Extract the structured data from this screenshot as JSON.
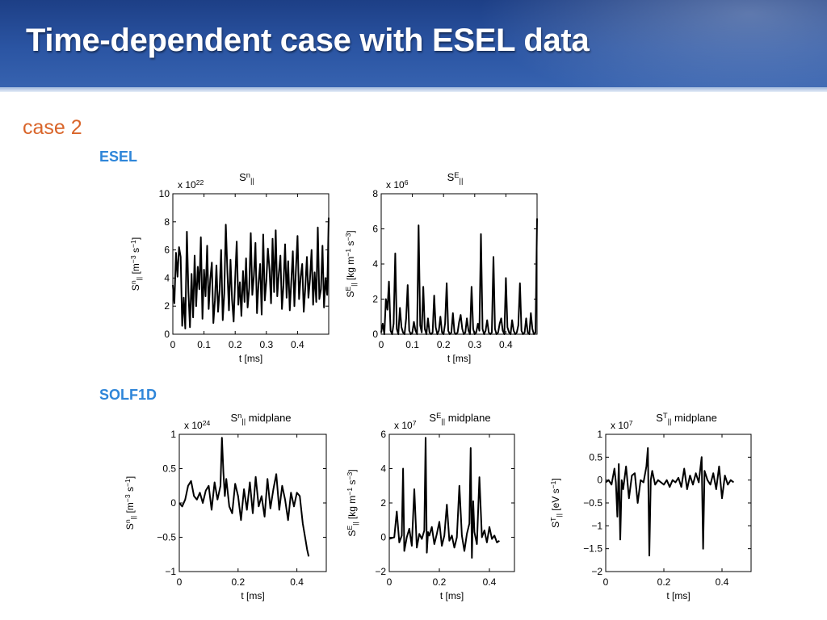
{
  "slide": {
    "title": "Time-dependent case with ESEL data",
    "case_label": "case 2",
    "section_esel": "ESEL",
    "section_solf1d": "SOLF1D"
  },
  "chart_data": [
    {
      "type": "line",
      "group": "ESEL",
      "title_main": "S",
      "title_sup": "n",
      "title_sub": "||",
      "title_suffix": "",
      "exponent_base": "x 10",
      "exponent_power": "22",
      "ylabel_main": "S",
      "ylabel_sup": "n",
      "ylabel_sub": "||",
      "ylabel_units": "[m",
      "ylabel_parts": [
        [
          "[m",
          ""
        ],
        [
          "−3",
          "sup"
        ],
        [
          " s",
          ""
        ],
        [
          "−1",
          "sup"
        ],
        [
          "]",
          ""
        ]
      ],
      "xlabel": "t [ms]",
      "xlim": [
        0,
        0.5
      ],
      "ylim": [
        0,
        10
      ],
      "xticks": [
        0,
        0.1,
        0.2,
        0.3,
        0.4
      ],
      "xtick_labels": [
        "0",
        "0.1",
        "0.2",
        "0.3",
        "0.4"
      ],
      "yticks": [
        0,
        2,
        4,
        6,
        8,
        10
      ],
      "ytick_labels": [
        "0",
        "2",
        "4",
        "6",
        "8",
        "10"
      ],
      "x": [
        0.0,
        0.005,
        0.01,
        0.015,
        0.02,
        0.025,
        0.03,
        0.035,
        0.04,
        0.045,
        0.05,
        0.055,
        0.06,
        0.065,
        0.07,
        0.075,
        0.08,
        0.085,
        0.09,
        0.095,
        0.1,
        0.105,
        0.11,
        0.115,
        0.12,
        0.125,
        0.13,
        0.135,
        0.14,
        0.145,
        0.15,
        0.155,
        0.16,
        0.165,
        0.17,
        0.175,
        0.18,
        0.185,
        0.19,
        0.195,
        0.2,
        0.205,
        0.21,
        0.215,
        0.22,
        0.225,
        0.23,
        0.235,
        0.24,
        0.245,
        0.25,
        0.255,
        0.26,
        0.265,
        0.27,
        0.275,
        0.28,
        0.285,
        0.29,
        0.295,
        0.3,
        0.305,
        0.31,
        0.315,
        0.32,
        0.325,
        0.33,
        0.335,
        0.34,
        0.345,
        0.35,
        0.355,
        0.36,
        0.365,
        0.37,
        0.375,
        0.38,
        0.385,
        0.39,
        0.395,
        0.4,
        0.405,
        0.41,
        0.415,
        0.42,
        0.425,
        0.43,
        0.435,
        0.44,
        0.445,
        0.45,
        0.455,
        0.46,
        0.465,
        0.47,
        0.475,
        0.48,
        0.485,
        0.49,
        0.495,
        0.5
      ],
      "y": [
        3.5,
        2.2,
        5.8,
        4.1,
        6.2,
        5.5,
        0.6,
        2.6,
        0.4,
        7.3,
        3.0,
        0.5,
        4.3,
        1.2,
        5.6,
        2.0,
        4.8,
        3.2,
        6.9,
        1.1,
        4.6,
        2.7,
        6.3,
        1.8,
        3.9,
        5.1,
        0.8,
        2.4,
        4.9,
        1.6,
        3.1,
        6.0,
        1.0,
        2.9,
        7.8,
        4.4,
        1.7,
        5.3,
        2.5,
        0.9,
        4.0,
        6.6,
        2.1,
        3.7,
        1.3,
        4.5,
        2.3,
        5.4,
        1.9,
        3.3,
        7.2,
        2.8,
        4.2,
        6.5,
        1.5,
        3.6,
        5.0,
        1.4,
        7.1,
        2.4,
        3.8,
        6.1,
        4.6,
        2.2,
        6.8,
        3.0,
        7.4,
        2.7,
        4.3,
        5.6,
        1.8,
        3.5,
        6.4,
        2.6,
        5.2,
        1.7,
        3.8,
        5.9,
        2.0,
        4.7,
        7.0,
        2.5,
        4.1,
        5.0,
        1.6,
        3.3,
        5.5,
        2.6,
        3.9,
        6.0,
        2.1,
        4.4,
        2.3,
        7.6,
        2.5,
        3.2,
        6.3,
        1.9,
        4.0,
        2.8,
        8.3
      ]
    },
    {
      "type": "line",
      "group": "ESEL",
      "title_main": "S",
      "title_sup": "E",
      "title_sub": "||",
      "title_suffix": "",
      "exponent_base": "x 10",
      "exponent_power": "6",
      "ylabel_main": "S",
      "ylabel_sup": "E",
      "ylabel_sub": "||",
      "ylabel_parts": [
        [
          "[kg m",
          ""
        ],
        [
          "−1",
          "sup"
        ],
        [
          " s",
          ""
        ],
        [
          "−3",
          "sup"
        ],
        [
          "]",
          ""
        ]
      ],
      "xlabel": "t [ms]",
      "xlim": [
        0,
        0.5
      ],
      "ylim": [
        0,
        8
      ],
      "xticks": [
        0,
        0.1,
        0.2,
        0.3,
        0.4
      ],
      "xtick_labels": [
        "0",
        "0.1",
        "0.2",
        "0.3",
        "0.4"
      ],
      "yticks": [
        0,
        2,
        4,
        6,
        8
      ],
      "ytick_labels": [
        "0",
        "2",
        "4",
        "6",
        "8"
      ],
      "x": [
        0.0,
        0.005,
        0.01,
        0.015,
        0.02,
        0.025,
        0.03,
        0.035,
        0.04,
        0.045,
        0.05,
        0.055,
        0.06,
        0.065,
        0.07,
        0.075,
        0.08,
        0.085,
        0.09,
        0.095,
        0.1,
        0.105,
        0.11,
        0.115,
        0.12,
        0.125,
        0.13,
        0.135,
        0.14,
        0.145,
        0.15,
        0.155,
        0.16,
        0.165,
        0.17,
        0.175,
        0.18,
        0.185,
        0.19,
        0.195,
        0.2,
        0.205,
        0.21,
        0.215,
        0.22,
        0.225,
        0.23,
        0.235,
        0.24,
        0.245,
        0.25,
        0.255,
        0.26,
        0.265,
        0.27,
        0.275,
        0.28,
        0.285,
        0.29,
        0.295,
        0.3,
        0.305,
        0.31,
        0.315,
        0.32,
        0.325,
        0.33,
        0.335,
        0.34,
        0.345,
        0.35,
        0.355,
        0.36,
        0.365,
        0.37,
        0.375,
        0.38,
        0.385,
        0.39,
        0.395,
        0.4,
        0.405,
        0.41,
        0.415,
        0.42,
        0.425,
        0.43,
        0.435,
        0.44,
        0.445,
        0.45,
        0.455,
        0.46,
        0.465,
        0.47,
        0.475,
        0.48,
        0.485,
        0.49,
        0.495,
        0.5
      ],
      "y": [
        0.1,
        0.6,
        0.0,
        2.0,
        1.4,
        3.0,
        0.2,
        0.0,
        0.6,
        4.6,
        0.3,
        0.0,
        1.5,
        0.4,
        0.1,
        0.0,
        0.9,
        2.8,
        0.2,
        0.0,
        0.1,
        0.7,
        0.2,
        0.0,
        6.2,
        0.5,
        0.1,
        2.7,
        0.3,
        0.0,
        0.9,
        0.1,
        0.0,
        0.1,
        2.2,
        0.4,
        0.0,
        0.2,
        1.0,
        0.1,
        0.0,
        0.6,
        2.9,
        0.2,
        0.0,
        0.1,
        1.2,
        0.1,
        0.0,
        0.1,
        0.7,
        1.1,
        0.3,
        0.0,
        0.1,
        0.9,
        0.2,
        0.0,
        2.7,
        0.3,
        0.0,
        0.1,
        0.6,
        0.2,
        5.7,
        0.3,
        0.0,
        0.2,
        0.8,
        0.1,
        0.0,
        0.1,
        4.4,
        0.3,
        0.0,
        0.1,
        0.6,
        0.9,
        0.2,
        0.0,
        3.2,
        0.4,
        0.1,
        0.0,
        0.8,
        0.2,
        0.0,
        0.1,
        0.5,
        2.9,
        0.2,
        0.0,
        0.1,
        0.9,
        0.1,
        0.0,
        1.2,
        0.3,
        0.0,
        0.1,
        6.6
      ]
    },
    {
      "type": "line",
      "group": "SOLF1D",
      "title_main": "S",
      "title_sup": "n",
      "title_sub": "||",
      "title_suffix": " midplane",
      "exponent_base": "x 10",
      "exponent_power": "24",
      "ylabel_main": "S",
      "ylabel_sup": "n",
      "ylabel_sub": "||",
      "ylabel_parts": [
        [
          "[m",
          ""
        ],
        [
          "−3",
          "sup"
        ],
        [
          " s",
          ""
        ],
        [
          "−1",
          "sup"
        ],
        [
          "]",
          ""
        ]
      ],
      "xlabel": "t [ms]",
      "xlim": [
        0,
        0.5
      ],
      "ylim": [
        -1,
        1
      ],
      "xticks": [
        0,
        0.2,
        0.4
      ],
      "xtick_labels": [
        "0",
        "0.2",
        "0.4"
      ],
      "yticks": [
        -1,
        -0.5,
        0,
        0.5,
        1
      ],
      "ytick_labels": [
        "−1",
        "−0.5",
        "0",
        "0.5",
        "1"
      ],
      "x": [
        0.0,
        0.01,
        0.02,
        0.03,
        0.04,
        0.05,
        0.06,
        0.07,
        0.08,
        0.09,
        0.1,
        0.11,
        0.12,
        0.13,
        0.14,
        0.145,
        0.15,
        0.155,
        0.16,
        0.17,
        0.18,
        0.19,
        0.2,
        0.21,
        0.22,
        0.23,
        0.24,
        0.25,
        0.26,
        0.27,
        0.28,
        0.29,
        0.3,
        0.31,
        0.32,
        0.33,
        0.34,
        0.35,
        0.36,
        0.37,
        0.38,
        0.39,
        0.4,
        0.41,
        0.42,
        0.43,
        0.435,
        0.44
      ],
      "y": [
        0.0,
        -0.05,
        0.05,
        0.25,
        0.32,
        0.1,
        0.05,
        0.15,
        0.0,
        0.18,
        0.25,
        -0.1,
        0.3,
        0.05,
        0.25,
        0.95,
        0.45,
        0.1,
        0.35,
        -0.05,
        -0.15,
        0.28,
        0.1,
        -0.25,
        0.2,
        -0.1,
        0.3,
        -0.15,
        0.38,
        -0.05,
        0.1,
        -0.2,
        0.35,
        -0.08,
        0.2,
        0.42,
        -0.1,
        0.25,
        0.05,
        -0.25,
        0.15,
        -0.05,
        0.15,
        0.1,
        -0.3,
        -0.55,
        -0.68,
        -0.78
      ]
    },
    {
      "type": "line",
      "group": "SOLF1D",
      "title_main": "S",
      "title_sup": "E",
      "title_sub": "||",
      "title_suffix": " midplane",
      "exponent_base": "x 10",
      "exponent_power": "7",
      "ylabel_main": "S",
      "ylabel_sup": "E",
      "ylabel_sub": "||",
      "ylabel_parts": [
        [
          "[kg m",
          ""
        ],
        [
          "−1",
          "sup"
        ],
        [
          " s",
          ""
        ],
        [
          "−3",
          "sup"
        ],
        [
          "]",
          ""
        ]
      ],
      "xlabel": "t [ms]",
      "xlim": [
        0,
        0.5
      ],
      "ylim": [
        -2,
        6
      ],
      "xticks": [
        0,
        0.2,
        0.4
      ],
      "xtick_labels": [
        "0",
        "0.2",
        "0.4"
      ],
      "yticks": [
        -2,
        0,
        2,
        4,
        6
      ],
      "ytick_labels": [
        "−2",
        "0",
        "2",
        "4",
        "6"
      ],
      "x": [
        0.0,
        0.01,
        0.02,
        0.03,
        0.04,
        0.05,
        0.055,
        0.06,
        0.07,
        0.08,
        0.09,
        0.1,
        0.11,
        0.12,
        0.13,
        0.14,
        0.145,
        0.15,
        0.155,
        0.16,
        0.17,
        0.18,
        0.19,
        0.2,
        0.21,
        0.22,
        0.23,
        0.24,
        0.25,
        0.26,
        0.27,
        0.28,
        0.29,
        0.3,
        0.31,
        0.32,
        0.325,
        0.33,
        0.335,
        0.34,
        0.35,
        0.36,
        0.37,
        0.38,
        0.39,
        0.4,
        0.41,
        0.42,
        0.43,
        0.44
      ],
      "y": [
        -0.1,
        -0.05,
        0.0,
        1.5,
        -0.3,
        0.1,
        4.0,
        -0.8,
        0.0,
        0.5,
        -0.5,
        2.8,
        -0.6,
        0.2,
        -0.1,
        0.4,
        5.8,
        -0.9,
        0.3,
        0.1,
        0.6,
        -0.4,
        0.2,
        0.9,
        -0.5,
        0.1,
        1.9,
        -0.2,
        0.1,
        -0.6,
        0.0,
        3.0,
        0.1,
        -0.8,
        0.2,
        0.8,
        5.2,
        -1.2,
        2.1,
        0.3,
        -0.4,
        3.5,
        0.0,
        0.4,
        -0.3,
        0.6,
        -0.1,
        0.1,
        -0.3,
        -0.2
      ]
    },
    {
      "type": "line",
      "group": "SOLF1D",
      "title_main": "S",
      "title_sup": "T",
      "title_sub": "||",
      "title_suffix": " midplane",
      "exponent_base": "x 10",
      "exponent_power": "7",
      "ylabel_main": "S",
      "ylabel_sup": "T",
      "ylabel_sub": "||",
      "ylabel_parts": [
        [
          "[eV s",
          ""
        ],
        [
          "−1",
          "sup"
        ],
        [
          "]",
          ""
        ]
      ],
      "xlabel": "t [ms]",
      "xlim": [
        0,
        0.5
      ],
      "ylim": [
        -2,
        1
      ],
      "xticks": [
        0,
        0.2,
        0.4
      ],
      "xtick_labels": [
        "0",
        "0.2",
        "0.4"
      ],
      "yticks": [
        -2,
        -1.5,
        -1,
        -0.5,
        0,
        0.5,
        1
      ],
      "ytick_labels": [
        "−2",
        "−1.5",
        "−1",
        "−0.5",
        "0",
        "0.5",
        "1"
      ],
      "x": [
        0.0,
        0.01,
        0.02,
        0.03,
        0.035,
        0.04,
        0.045,
        0.05,
        0.055,
        0.06,
        0.07,
        0.08,
        0.09,
        0.1,
        0.11,
        0.12,
        0.13,
        0.14,
        0.145,
        0.15,
        0.155,
        0.16,
        0.17,
        0.18,
        0.19,
        0.2,
        0.21,
        0.22,
        0.23,
        0.24,
        0.25,
        0.26,
        0.27,
        0.28,
        0.29,
        0.3,
        0.31,
        0.32,
        0.33,
        0.335,
        0.34,
        0.35,
        0.36,
        0.37,
        0.38,
        0.39,
        0.4,
        0.41,
        0.42,
        0.43,
        0.44
      ],
      "y": [
        -0.05,
        0.0,
        -0.1,
        0.25,
        -0.05,
        -0.8,
        0.35,
        -1.3,
        0.0,
        -0.2,
        0.3,
        -0.4,
        0.1,
        0.15,
        -0.5,
        0.0,
        -0.05,
        0.3,
        0.7,
        -1.65,
        0.0,
        0.2,
        -0.1,
        0.0,
        -0.05,
        -0.1,
        0.0,
        -0.15,
        0.0,
        -0.05,
        0.05,
        -0.15,
        0.25,
        -0.2,
        0.1,
        -0.1,
        0.15,
        -0.05,
        0.5,
        -1.5,
        0.2,
        0.0,
        -0.1,
        0.15,
        -0.2,
        0.3,
        -0.4,
        0.1,
        -0.1,
        0.0,
        -0.05
      ]
    }
  ]
}
